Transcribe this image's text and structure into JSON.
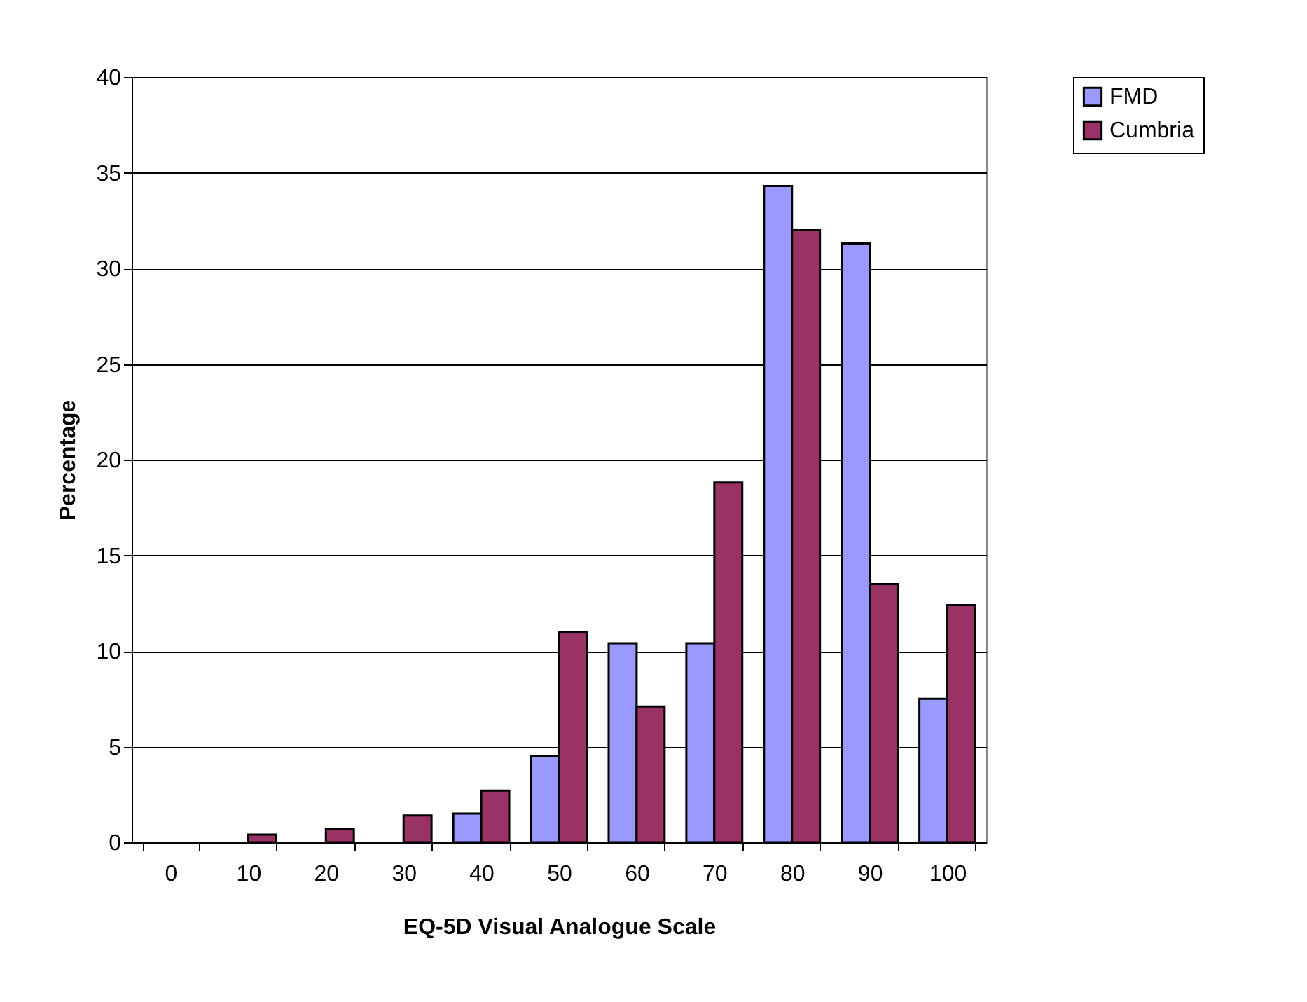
{
  "chart_data": {
    "type": "bar",
    "xlabel": "EQ-5D Visual Analogue Scale",
    "ylabel": "Percentage",
    "categories": [
      "0",
      "10",
      "20",
      "30",
      "40",
      "50",
      "60",
      "70",
      "80",
      "90",
      "100"
    ],
    "series": [
      {
        "name": "FMD",
        "color": "#9999ff",
        "values": [
          null,
          null,
          null,
          null,
          1.5,
          4.5,
          10.4,
          10.4,
          34.3,
          31.3,
          7.5
        ]
      },
      {
        "name": "Cumbria",
        "color": "#993366",
        "values": [
          null,
          0.4,
          0.7,
          1.4,
          2.7,
          11.0,
          7.1,
          18.8,
          32.0,
          13.5,
          12.4
        ]
      }
    ],
    "ylim": [
      0,
      40
    ],
    "yticks": [
      0,
      5,
      10,
      15,
      20,
      25,
      30,
      35,
      40
    ],
    "grid": "y",
    "legend": "right"
  }
}
